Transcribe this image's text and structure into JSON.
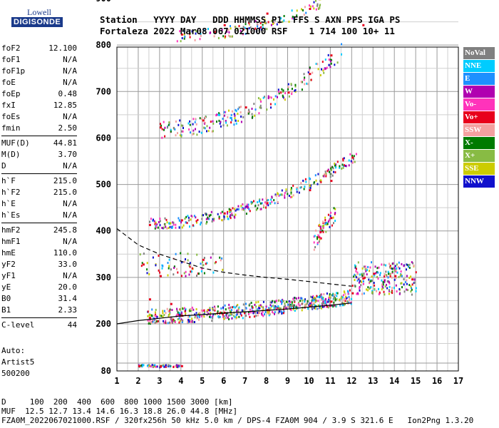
{
  "logo": {
    "line1": "Lowell",
    "line2": "DIGISONDE"
  },
  "header": {
    "row1": "Station   YYYY DAY   DDD HHMMSS P1  FFS S AXN PPS IGA PS",
    "row2": "Fortaleza 2022 Mar08 067 021000 RSF    1 714 100 10+ 11"
  },
  "params": [
    {
      "group": [
        {
          "label": "foF2",
          "value": "12.100"
        },
        {
          "label": "foF1",
          "value": "N/A"
        },
        {
          "label": "foF1p",
          "value": "N/A"
        },
        {
          "label": "foE",
          "value": "N/A"
        },
        {
          "label": "foEp",
          "value": "0.48"
        },
        {
          "label": "fxI",
          "value": "12.85"
        },
        {
          "label": "foEs",
          "value": "N/A"
        },
        {
          "label": "fmin",
          "value": "2.50"
        }
      ]
    },
    {
      "group": [
        {
          "label": "MUF(D)",
          "value": "44.81"
        },
        {
          "label": "M(D)",
          "value": "3.70"
        },
        {
          "label": "D",
          "value": "N/A"
        }
      ]
    },
    {
      "group": [
        {
          "label": "h`F",
          "value": "215.0"
        },
        {
          "label": "h`F2",
          "value": "215.0"
        },
        {
          "label": "h`E",
          "value": "N/A"
        },
        {
          "label": "h`Es",
          "value": "N/A"
        }
      ]
    },
    {
      "group": [
        {
          "label": "hmF2",
          "value": "245.8"
        },
        {
          "label": "hmF1",
          "value": "N/A"
        },
        {
          "label": "hmE",
          "value": "110.0"
        },
        {
          "label": "yF2",
          "value": "33.0"
        },
        {
          "label": "yF1",
          "value": "N/A"
        },
        {
          "label": "yE",
          "value": "20.0"
        },
        {
          "label": "B0",
          "value": "31.4"
        },
        {
          "label": "B1",
          "value": "2.33"
        }
      ]
    },
    {
      "group": [
        {
          "label": "C-level",
          "value": "44"
        }
      ]
    }
  ],
  "auto": [
    "Auto:",
    "Artist5",
    "500200"
  ],
  "legend": [
    {
      "label": "NoVal",
      "color": "#808080"
    },
    {
      "label": "NNE",
      "color": "#00ccff"
    },
    {
      "label": "E",
      "color": "#1e90ff"
    },
    {
      "label": "W",
      "color": "#b000b0"
    },
    {
      "label": "Vo-",
      "color": "#ff33bb"
    },
    {
      "label": "Vo+",
      "color": "#e8001c"
    },
    {
      "label": "SSW",
      "color": "#f4a0a0"
    },
    {
      "label": "X-",
      "color": "#007a00"
    },
    {
      "label": "X+",
      "color": "#88bb44"
    },
    {
      "label": "SSE",
      "color": "#cccc00"
    },
    {
      "label": "NNW",
      "color": "#1010cc"
    }
  ],
  "footer": {
    "line1": "D     100  200  400  600  800 1000 1500 3000 [km]",
    "line2": "MUF  12.5 12.7 13.4 14.6 16.3 18.8 26.0 44.8 [MHz]",
    "line3": "FZA0M_2022067021000.RSF / 320fx256h 50 kHz 5.0 km / DPS-4 FZA0M 904 / 3.9 S 321.6 E   Ion2Png 1.3.20"
  },
  "chart_data": {
    "type": "scatter",
    "xlim": [
      1,
      17
    ],
    "ylim": [
      80,
      900
    ],
    "x_ticks": [
      1,
      2,
      3,
      4,
      5,
      6,
      7,
      8,
      9,
      10,
      11,
      12,
      13,
      14,
      15,
      16,
      17
    ],
    "y_ticks": [
      80,
      200,
      300,
      400,
      500,
      600,
      700,
      800,
      900
    ],
    "grid": true,
    "series": [
      {
        "points": [
          [
            2.0,
            95
          ],
          [
            3.0,
            94
          ],
          [
            4.0,
            95
          ],
          [
            2.5,
            215
          ],
          [
            4,
            220
          ],
          [
            6,
            226
          ],
          [
            8,
            232
          ],
          [
            10,
            240
          ],
          [
            11,
            250
          ],
          [
            12,
            268
          ],
          [
            12.5,
            300
          ],
          [
            13,
            310
          ],
          [
            14,
            305
          ],
          [
            14.8,
            298
          ],
          [
            2.2,
            330
          ],
          [
            2.5,
            415
          ],
          [
            4,
            425
          ],
          [
            6,
            440
          ],
          [
            8,
            462
          ],
          [
            10,
            490
          ],
          [
            11,
            510
          ],
          [
            12,
            560
          ],
          [
            3,
            625
          ],
          [
            5,
            640
          ],
          [
            7,
            668
          ],
          [
            9,
            700
          ],
          [
            10,
            740
          ],
          [
            11,
            780
          ],
          [
            4,
            825
          ],
          [
            6,
            845
          ],
          [
            8,
            870
          ],
          [
            10,
            880
          ],
          [
            12.5,
            845
          ],
          [
            10.5,
            400
          ],
          [
            11,
            430
          ],
          [
            5,
            340
          ],
          [
            3,
            305
          ],
          [
            2.5,
            255
          ],
          [
            3.5,
            245
          ]
        ]
      }
    ],
    "profile_curve": {
      "x": [
        1,
        2,
        3,
        4,
        5,
        6,
        7,
        8,
        9,
        10,
        11,
        12
      ],
      "y": [
        200,
        207,
        212,
        217,
        220,
        223,
        226,
        229,
        232,
        236,
        240,
        245
      ]
    },
    "extrapolation_curve": {
      "x": [
        1,
        2,
        3,
        4,
        5,
        6,
        7,
        8,
        9,
        10,
        11,
        12
      ],
      "y": [
        405,
        370,
        350,
        335,
        320,
        311,
        305,
        300,
        296,
        291,
        286,
        281
      ]
    }
  }
}
